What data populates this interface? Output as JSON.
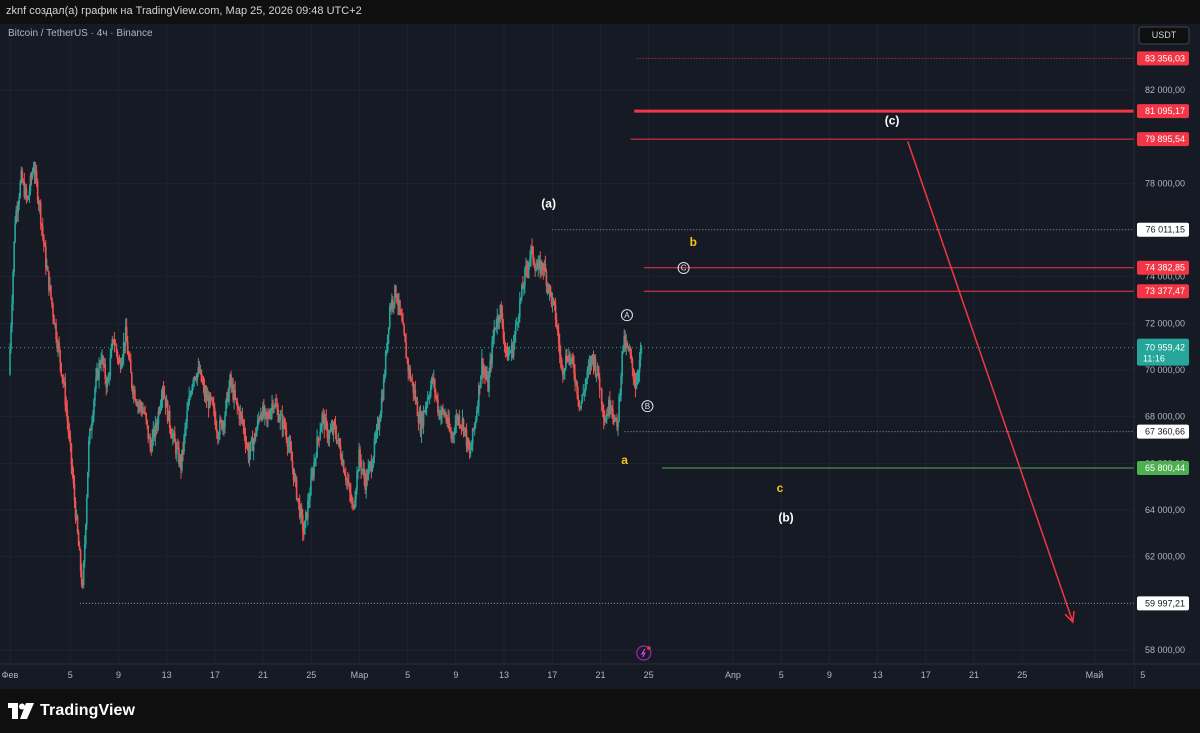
{
  "header": {
    "caption": "zknf создал(а) график на TradingView.com, Мар 25, 2026 09:48 UTC+2",
    "symbol_line": "Bitcoin / TetherUS · 4ч · Binance"
  },
  "footer": {
    "logo_text": "TradingView"
  },
  "colors": {
    "up": "#26a69a",
    "down": "#ef5350",
    "background": "#161a25",
    "red_line": "#f23645",
    "green_line": "#4caf50",
    "wave_yellow": "#f5c518",
    "dotted": "#9598a1"
  },
  "chart_data": {
    "type": "candlestick",
    "currency_badge": "USDT",
    "ylim": [
      57400,
      84400
    ],
    "y_ticks": [
      {
        "value": 82000,
        "label": "82 000,00"
      },
      {
        "value": 78000,
        "label": "78 000,00"
      },
      {
        "value": 74000,
        "label": "74 000,00"
      },
      {
        "value": 72000,
        "label": "72 000,00"
      },
      {
        "value": 70000,
        "label": "70 000,00"
      },
      {
        "value": 68000,
        "label": "68 000,00"
      },
      {
        "value": 66000,
        "label": "66 000,00"
      },
      {
        "value": 64000,
        "label": "64 000,00"
      },
      {
        "value": 62000,
        "label": "62 000,00"
      },
      {
        "value": 58000,
        "label": "58 000,00"
      }
    ],
    "x_ticks": [
      {
        "label": "Фев",
        "pos": 0
      },
      {
        "label": "5",
        "pos": 5
      },
      {
        "label": "9",
        "pos": 9
      },
      {
        "label": "13",
        "pos": 13
      },
      {
        "label": "17",
        "pos": 17
      },
      {
        "label": "21",
        "pos": 21
      },
      {
        "label": "25",
        "pos": 25
      },
      {
        "label": "Мар",
        "pos": 29
      },
      {
        "label": "5",
        "pos": 33
      },
      {
        "label": "9",
        "pos": 37
      },
      {
        "label": "13",
        "pos": 41
      },
      {
        "label": "17",
        "pos": 45
      },
      {
        "label": "21",
        "pos": 49
      },
      {
        "label": "25",
        "pos": 53
      },
      {
        "label": "Апр",
        "pos": 60
      },
      {
        "label": "5",
        "pos": 64
      },
      {
        "label": "9",
        "pos": 68
      },
      {
        "label": "13",
        "pos": 72
      },
      {
        "label": "17",
        "pos": 76
      },
      {
        "label": "21",
        "pos": 80
      },
      {
        "label": "25",
        "pos": 84
      },
      {
        "label": "Май",
        "pos": 90
      },
      {
        "label": "5",
        "pos": 94
      }
    ],
    "price_levels": [
      {
        "value": 83356.03,
        "label": "83 356,03",
        "style": "dotted-red",
        "x_start": 52
      },
      {
        "value": 81095.17,
        "label": "81 095,17",
        "style": "thick-red",
        "x_start": 51.8
      },
      {
        "value": 79895.54,
        "label": "79 895,54",
        "style": "red",
        "x_start": 51.5
      },
      {
        "value": 76011.15,
        "label": "76 011,15",
        "style": "dotted",
        "x_start": 45
      },
      {
        "value": 74382.85,
        "label": "74 382,85",
        "style": "red",
        "x_start": 52.6
      },
      {
        "value": 73377.47,
        "label": "73 377,47",
        "style": "red",
        "x_start": 52.6
      },
      {
        "value": 67360.66,
        "label": "67 360,66",
        "style": "dotted",
        "x_start": 51
      },
      {
        "value": 65800.44,
        "label": "65 800,44",
        "style": "green",
        "x_start": 54.1
      },
      {
        "value": 59997.21,
        "label": "59 997,21",
        "style": "dotted",
        "x_start": 5.8
      }
    ],
    "current_price": {
      "value": 70959.42,
      "label": "70 959,42",
      "countdown": "11:16"
    },
    "wave_labels": [
      {
        "text": "(a)",
        "t": 44.7,
        "y": 77100,
        "color": "#ffffff",
        "bold": true
      },
      {
        "text": "b",
        "t": 56.7,
        "y": 75450,
        "color": "#f5c518",
        "bold": true
      },
      {
        "text": "a",
        "t": 51,
        "y": 66100,
        "color": "#f5c518",
        "bold": true
      },
      {
        "text": "c",
        "t": 63.9,
        "y": 64900,
        "color": "#f5c518",
        "bold": true
      },
      {
        "text": "(b)",
        "t": 64.4,
        "y": 63650,
        "color": "#ffffff",
        "bold": true
      },
      {
        "text": "(c)",
        "t": 73.2,
        "y": 80650,
        "color": "#ffffff",
        "bold": true
      }
    ],
    "circle_labels": [
      {
        "text": "A",
        "t": 51.2,
        "y": 72350
      },
      {
        "text": "B",
        "t": 52.9,
        "y": 68450
      },
      {
        "text": "C",
        "t": 55.9,
        "y": 74370
      }
    ],
    "projection": {
      "from": {
        "t": 74.5,
        "y": 79800
      },
      "to": {
        "t": 88.2,
        "y": 59200
      }
    },
    "ohlc": {
      "start": 69800,
      "closes": [
        76500,
        78200,
        77200,
        78800,
        77000,
        74600,
        72800,
        71000,
        69200,
        66500,
        63400,
        60500,
        66800,
        69200,
        70600,
        69300,
        71400,
        70200,
        71500,
        69400,
        68600,
        68200,
        66700,
        67600,
        69400,
        67900,
        66800,
        65900,
        68100,
        69800,
        69900,
        68800,
        68500,
        67400,
        67900,
        69500,
        68500,
        67800,
        66400,
        67100,
        68300,
        67800,
        68700,
        68000,
        67500,
        66100,
        64500,
        63000,
        64800,
        66600,
        68000,
        67200,
        67500,
        66500,
        65300,
        64000,
        66300,
        65200,
        66000,
        67400,
        69400,
        72700,
        73400,
        71900,
        70100,
        69000,
        67600,
        68700,
        69600,
        68200,
        68100,
        67100,
        68000,
        67700,
        66300,
        68000,
        70300,
        69300,
        71800,
        72600,
        70600,
        70900,
        72600,
        74000,
        75100,
        74300,
        74500,
        73400,
        72300,
        70000,
        70700,
        70000,
        68400,
        69600,
        70600,
        69700,
        67900,
        68700,
        67400,
        71200,
        70700,
        69400,
        70900
      ]
    }
  }
}
